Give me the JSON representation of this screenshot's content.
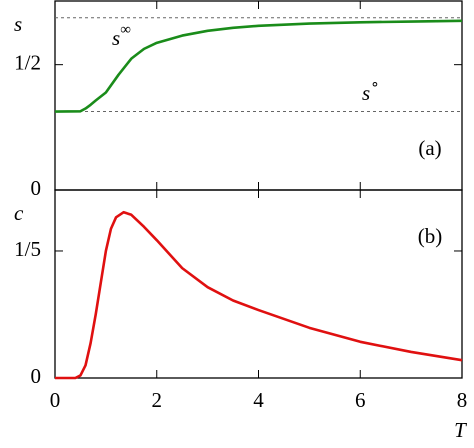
{
  "chart_data": [
    {
      "type": "line",
      "y_label": "s",
      "panel_label": "(a)",
      "x": [
        0,
        0.5,
        0.6,
        0.7,
        0.8,
        0.9,
        1.0,
        1.25,
        1.5,
        1.75,
        2,
        2.5,
        3,
        3.5,
        4,
        5,
        6,
        7,
        8
      ],
      "series": [
        {
          "name": "s",
          "color": "#1a8c1a",
          "values": [
            0.313,
            0.314,
            0.325,
            0.34,
            0.357,
            0.373,
            0.389,
            0.46,
            0.524,
            0.563,
            0.587,
            0.616,
            0.635,
            0.647,
            0.655,
            0.664,
            0.669,
            0.672,
            0.675
          ]
        }
      ],
      "reference_lines": [
        {
          "value": 0.687,
          "label": {
            "base": "s",
            "superscript": "∞"
          }
        },
        {
          "value": 0.313,
          "label": {
            "base": "s",
            "superscript": "∘"
          }
        }
      ],
      "xlim": [
        0,
        8
      ],
      "xticks": [
        0,
        2,
        4,
        6,
        8
      ],
      "ylim": [
        0,
        0.754
      ],
      "yticks": [
        0,
        {
          "value": 0.5,
          "label": "1/2"
        }
      ]
    },
    {
      "type": "line",
      "y_label": "c",
      "panel_label": "(b)",
      "x_label": "T",
      "x": [
        0,
        0.4,
        0.5,
        0.6,
        0.7,
        0.8,
        0.9,
        1.0,
        1.1,
        1.2,
        1.35,
        1.5,
        1.75,
        2,
        2.5,
        3,
        3.5,
        4,
        5,
        6,
        7,
        8
      ],
      "series": [
        {
          "name": "c",
          "color": "#e01010",
          "values": [
            0,
            0,
            0.004,
            0.02,
            0.055,
            0.1,
            0.15,
            0.2,
            0.235,
            0.253,
            0.261,
            0.257,
            0.238,
            0.217,
            0.173,
            0.143,
            0.122,
            0.107,
            0.079,
            0.057,
            0.041,
            0.028
          ]
        }
      ],
      "xlim": [
        0,
        8
      ],
      "xticks": [
        0,
        2,
        4,
        6,
        8
      ],
      "ylim": [
        0,
        0.296
      ],
      "yticks": [
        0,
        {
          "value": 0.2,
          "label": "1/5"
        }
      ]
    }
  ]
}
